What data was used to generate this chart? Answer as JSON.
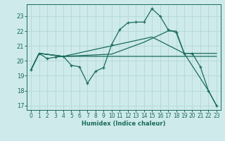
{
  "xlabel": "Humidex (Indice chaleur)",
  "background_color": "#ceeaea",
  "grid_color": "#afd4d4",
  "line_color": "#1a6b5e",
  "xlim": [
    -0.5,
    23.5
  ],
  "ylim": [
    16.7,
    23.8
  ],
  "yticks": [
    17,
    18,
    19,
    20,
    21,
    22,
    23
  ],
  "xticks": [
    0,
    1,
    2,
    3,
    4,
    5,
    6,
    7,
    8,
    9,
    10,
    11,
    12,
    13,
    14,
    15,
    16,
    17,
    18,
    19,
    20,
    21,
    22,
    23
  ],
  "line1_x": [
    0,
    1,
    2,
    3,
    4,
    5,
    6,
    7,
    8,
    9,
    10,
    11,
    12,
    13,
    14,
    15,
    16,
    17,
    18,
    19,
    20,
    21,
    22,
    23
  ],
  "line1_y": [
    19.4,
    20.5,
    20.15,
    20.25,
    20.3,
    19.7,
    19.6,
    18.5,
    19.3,
    19.55,
    21.1,
    22.1,
    22.55,
    22.6,
    22.6,
    23.5,
    23.0,
    22.1,
    21.9,
    20.5,
    20.5,
    19.6,
    18.0,
    17.0
  ],
  "line2_x": [
    0,
    1,
    4,
    10,
    11,
    12,
    13,
    14,
    15,
    16,
    17,
    18,
    19,
    20,
    21,
    22,
    23
  ],
  "line2_y": [
    19.4,
    20.5,
    20.3,
    20.45,
    20.65,
    20.85,
    21.05,
    21.25,
    21.5,
    21.75,
    22.0,
    22.0,
    20.5,
    20.5,
    20.5,
    20.5,
    20.5
  ],
  "line3_x": [
    0,
    1,
    4,
    15,
    19,
    22,
    23
  ],
  "line3_y": [
    19.4,
    20.5,
    20.3,
    21.6,
    20.5,
    18.0,
    17.0
  ],
  "line4_x": [
    0,
    1,
    4,
    9,
    19,
    20,
    21,
    22,
    23
  ],
  "line4_y": [
    19.4,
    20.5,
    20.3,
    20.3,
    20.3,
    20.3,
    20.3,
    20.3,
    20.3
  ]
}
